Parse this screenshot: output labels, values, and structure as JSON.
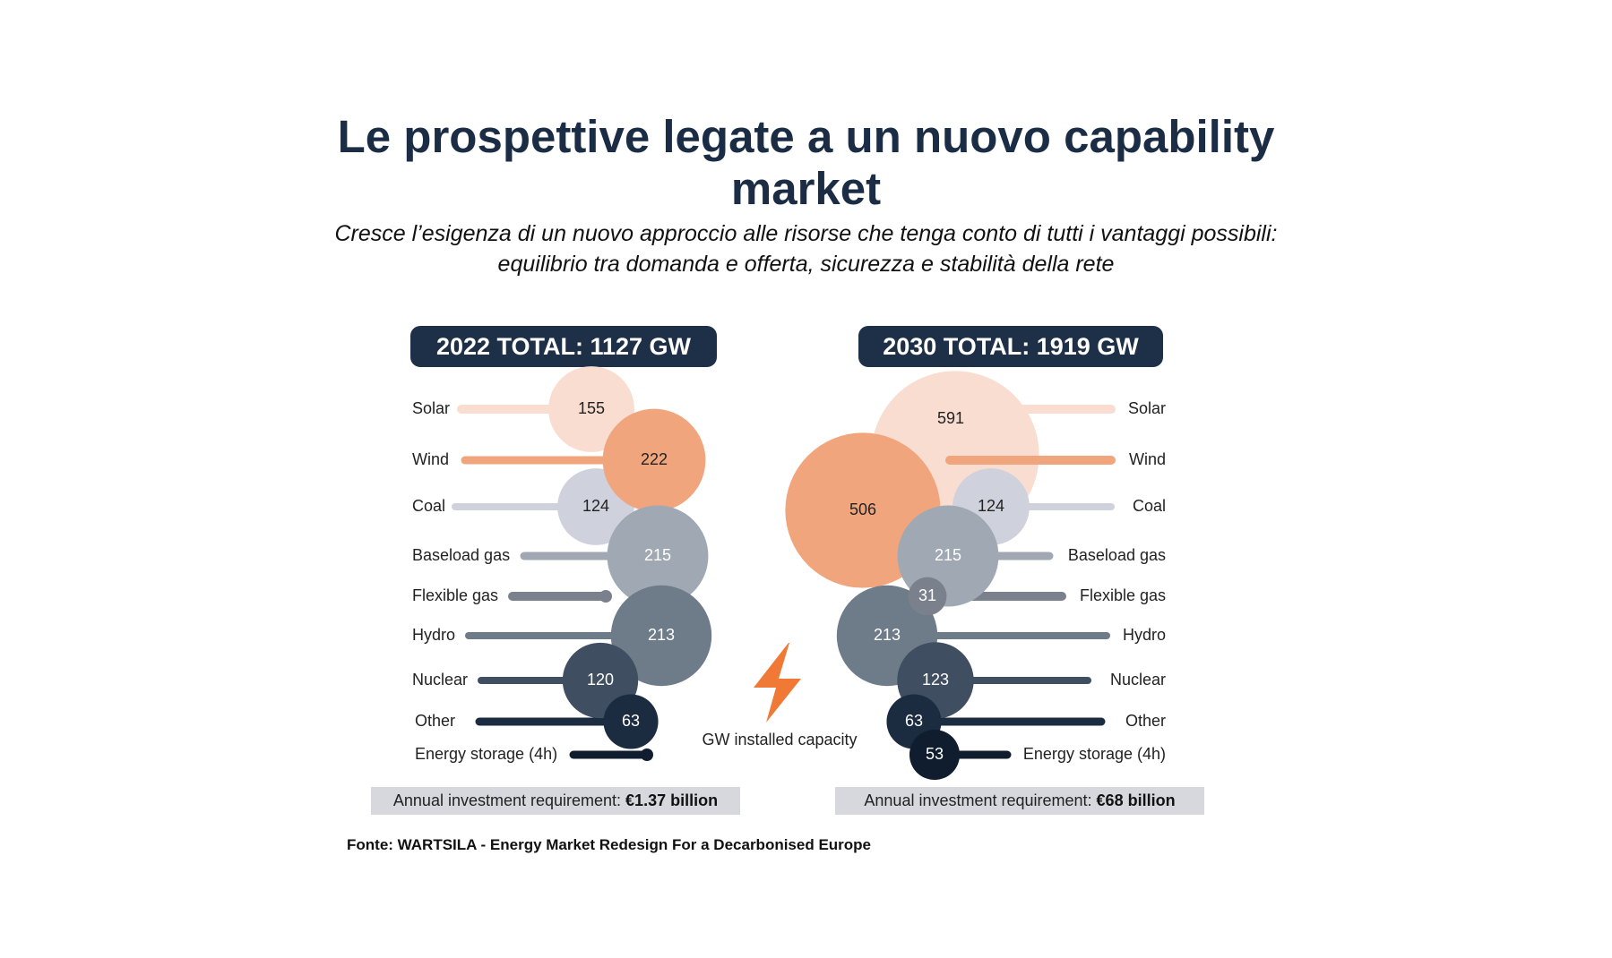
{
  "header": {
    "title_line1": "Le prospettive legate a un nuovo capability",
    "title_line2": "market",
    "subtitle_line1": "Cresce l’esigenza di un nuovo approccio alle risorse che tenga conto di tutti i vantaggi possibili:",
    "subtitle_line2": "equilibrio tra domanda e offerta, sicurezza e stabilità della rete"
  },
  "center_label": "GW installed capacity",
  "source": "Fonte: WARTSILA - Energy Market Redesign For a Decarbonised Europe",
  "colors": {
    "navy": "#1e3048",
    "solar": "#f9ddd0",
    "wind": "#f0a57d",
    "coal": "#cfd2dc",
    "baseload_gas": "#a0a9b3",
    "flexible_gas": "#7a818c",
    "hydro": "#6e7b89",
    "nuclear": "#3f4e60",
    "other": "#1c2c40",
    "energy_storage": "#0f1d2e",
    "bolt": "#f07a35"
  },
  "chart_data": {
    "type": "bubble",
    "categories": [
      "Solar",
      "Wind",
      "Coal",
      "Baseload gas",
      "Flexible gas",
      "Hydro",
      "Nuclear",
      "Other",
      "Energy storage (4h)"
    ],
    "unit": "GW installed capacity",
    "panels": [
      {
        "year": "2022",
        "total_label": "2022 TOTAL: 1127 GW",
        "total_gw": 1127,
        "values": [
          155,
          222,
          124,
          215,
          null,
          213,
          120,
          63,
          null
        ],
        "investment_prefix": "Annual investment requirement: ",
        "investment_value": "€1.37 billion"
      },
      {
        "year": "2030",
        "total_label": "2030 TOTAL: 1919 GW",
        "total_gw": 1919,
        "values": [
          591,
          506,
          124,
          215,
          31,
          213,
          123,
          63,
          53
        ],
        "investment_prefix": "Annual investment requirement: ",
        "investment_value": "€68 billion"
      }
    ]
  }
}
